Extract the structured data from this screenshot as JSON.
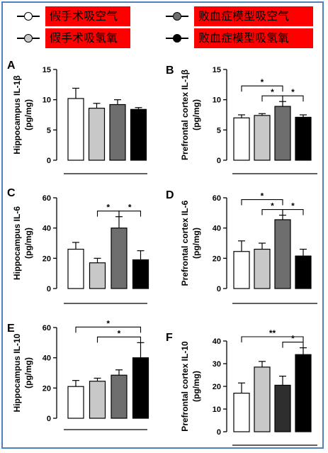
{
  "legend": {
    "items": [
      {
        "label": "假手术吸空气",
        "fill": "#ffffff"
      },
      {
        "label": "假手术吸氢氧",
        "fill": "#c8c8c8"
      },
      {
        "label": "败血症模型吸空气",
        "fill": "#6e6e6e"
      },
      {
        "label": "败血症模型吸氢氧",
        "fill": "#000000"
      }
    ]
  },
  "chart_data": [
    {
      "type": "bar",
      "panel_letter": "A",
      "ylabel": "Hippocampus IL-1β",
      "yunit": "(pg/mg)",
      "ylim": [
        0,
        15
      ],
      "yticks": [
        0,
        5,
        10,
        15
      ],
      "values": [
        10.2,
        8.6,
        9.2,
        8.4
      ],
      "errors": [
        1.7,
        0.8,
        0.8,
        0.3
      ],
      "significance": []
    },
    {
      "type": "bar",
      "panel_letter": "B",
      "ylabel": "Prefrontal cortex  IL-1β",
      "yunit": "(pg/mg)",
      "ylim": [
        0,
        15
      ],
      "yticks": [
        0,
        5,
        10,
        15
      ],
      "values": [
        7.0,
        7.4,
        8.9,
        7.1
      ],
      "errors": [
        0.5,
        0.3,
        0.8,
        0.4
      ],
      "significance": [
        {
          "from": 0,
          "to": 2,
          "label": "*",
          "level": 1
        },
        {
          "from": 1,
          "to": 2,
          "label": "*",
          "level": 0
        },
        {
          "from": 2,
          "to": 3,
          "label": "*",
          "level": 0
        }
      ]
    },
    {
      "type": "bar",
      "panel_letter": "C",
      "ylabel": "Hippocampus IL-6",
      "yunit": "(pg/mg)",
      "ylim": [
        0,
        60
      ],
      "yticks": [
        0,
        20,
        40,
        60
      ],
      "values": [
        26,
        17,
        40,
        19
      ],
      "errors": [
        4.5,
        3,
        7.5,
        6
      ],
      "significance": [
        {
          "from": 1,
          "to": 2,
          "label": "*",
          "level": 0
        },
        {
          "from": 2,
          "to": 3,
          "label": "*",
          "level": 0
        }
      ]
    },
    {
      "type": "bar",
      "panel_letter": "D",
      "ylabel": "Prefrontal cortex IL-6",
      "yunit": "(pg/mg)",
      "ylim": [
        0,
        60
      ],
      "yticks": [
        0,
        20,
        40,
        60
      ],
      "values": [
        24.5,
        26,
        45.5,
        21.5
      ],
      "errors": [
        7,
        4,
        3,
        4.5
      ],
      "significance": [
        {
          "from": 0,
          "to": 2,
          "label": "*",
          "level": 1
        },
        {
          "from": 1,
          "to": 2,
          "label": "*",
          "level": 0
        },
        {
          "from": 2,
          "to": 3,
          "label": "*",
          "level": 0
        }
      ]
    },
    {
      "type": "bar",
      "panel_letter": "E",
      "ylabel": "Hippocampus IL-10",
      "yunit": "(pg/mg)",
      "ylim": [
        0,
        60
      ],
      "yticks": [
        0,
        20,
        40,
        60
      ],
      "values": [
        21,
        24.5,
        28.5,
        40
      ],
      "errors": [
        4,
        2,
        3.5,
        10
      ],
      "significance": [
        {
          "from": 0,
          "to": 3,
          "label": "*",
          "level": 1
        },
        {
          "from": 1,
          "to": 3,
          "label": "*",
          "level": 0
        }
      ]
    },
    {
      "type": "bar",
      "panel_letter": "F",
      "ylabel": "Prefrontal cortex IL-10",
      "yunit": "(pg/mg)",
      "ylim": [
        0,
        40
      ],
      "yticks": [
        0,
        10,
        20,
        30,
        40
      ],
      "values": [
        17,
        28.5,
        20.5,
        34
      ],
      "errors": [
        4.5,
        2.5,
        4,
        3
      ],
      "bar_fills": [
        "#ffffff",
        "#c8c8c8",
        "#2e2e2e",
        "#000000"
      ],
      "significance": [
        {
          "from": 0,
          "to": 3,
          "label": "**",
          "level": 1
        },
        {
          "from": 2,
          "to": 3,
          "label": "*",
          "level": 0
        }
      ]
    }
  ]
}
